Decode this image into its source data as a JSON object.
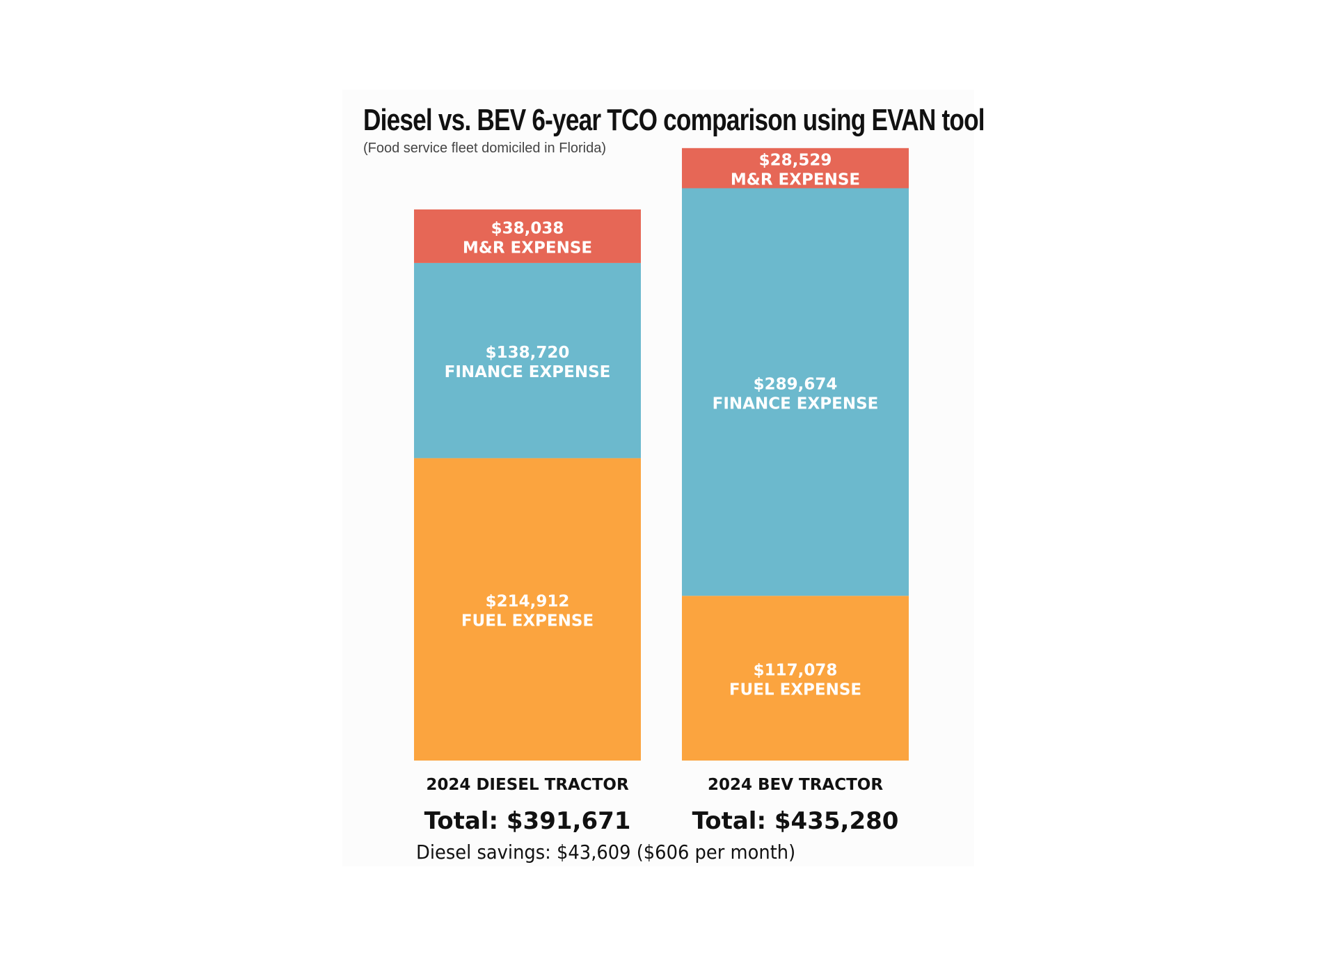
{
  "chart_data": {
    "type": "bar",
    "stacked": true,
    "title": "Diesel vs. BEV 6-year TCO comparison using EVAN tool",
    "subtitle": "(Food service fleet domiciled in Florida)",
    "categories": [
      "2024 DIESEL TRACTOR",
      "2024 BEV TRACTOR"
    ],
    "series": [
      {
        "name": "FUEL EXPENSE",
        "values": [
          214912,
          117078
        ],
        "labels": [
          "$214,912",
          "$117,078"
        ],
        "color": "#FBA43F"
      },
      {
        "name": "FINANCE EXPENSE",
        "values": [
          138720,
          289674
        ],
        "labels": [
          "$138,720",
          "$289,674"
        ],
        "color": "#6CB9CD"
      },
      {
        "name": "M&R EXPENSE",
        "values": [
          38038,
          28529
        ],
        "labels": [
          "$38,038",
          "$28,529"
        ],
        "color": "#E66756"
      }
    ],
    "totals": [
      "Total: $391,671",
      "Total: $435,280"
    ],
    "note": "Diesel savings: $43,609 ($606 per month)",
    "grid": false,
    "axes_visible": false
  }
}
